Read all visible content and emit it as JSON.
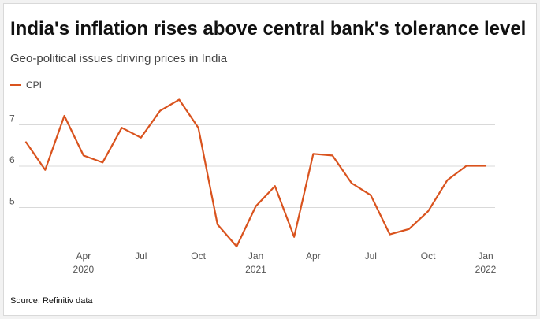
{
  "title": "India's inflation rises above central bank's tolerance level",
  "subtitle": "Geo-political issues driving prices in India",
  "source": "Source: Refinitiv data",
  "colors": {
    "line": "#d9531e",
    "grid": "#d9d9d9",
    "text": "#555555"
  },
  "chart_data": {
    "type": "line",
    "series": [
      {
        "name": "CPI",
        "color": "#d9531e",
        "x": [
          "2020-01",
          "2020-02",
          "2020-03",
          "2020-04",
          "2020-05",
          "2020-06",
          "2020-07",
          "2020-08",
          "2020-09",
          "2020-10",
          "2020-11",
          "2020-12",
          "2021-01",
          "2021-02",
          "2021-03",
          "2021-04",
          "2021-05",
          "2021-06",
          "2021-07",
          "2021-08",
          "2021-09",
          "2021-10",
          "2021-11",
          "2021-12",
          "2022-01"
        ],
        "values": [
          6.58,
          5.91,
          7.22,
          6.26,
          6.09,
          6.93,
          6.69,
          7.34,
          7.61,
          6.93,
          4.59,
          4.06,
          5.03,
          5.52,
          4.29,
          6.3,
          6.26,
          5.59,
          5.3,
          4.35,
          4.48,
          4.91,
          5.66,
          6.01,
          6.01
        ]
      }
    ],
    "xlim": [
      "2020-01",
      "2022-01"
    ],
    "ylim": [
      4,
      8
    ],
    "yticks": [
      "5",
      "6",
      "7"
    ],
    "xticks": [
      {
        "label": "Apr",
        "sublabel": "2020",
        "x": "2020-04"
      },
      {
        "label": "Jul",
        "sublabel": "",
        "x": "2020-07"
      },
      {
        "label": "Oct",
        "sublabel": "",
        "x": "2020-10"
      },
      {
        "label": "Jan",
        "sublabel": "2021",
        "x": "2021-01"
      },
      {
        "label": "Apr",
        "sublabel": "",
        "x": "2021-04"
      },
      {
        "label": "Jul",
        "sublabel": "",
        "x": "2021-07"
      },
      {
        "label": "Oct",
        "sublabel": "",
        "x": "2021-10"
      },
      {
        "label": "Jan",
        "sublabel": "2022",
        "x": "2022-01"
      }
    ],
    "grid": true,
    "legend": "top-left"
  }
}
